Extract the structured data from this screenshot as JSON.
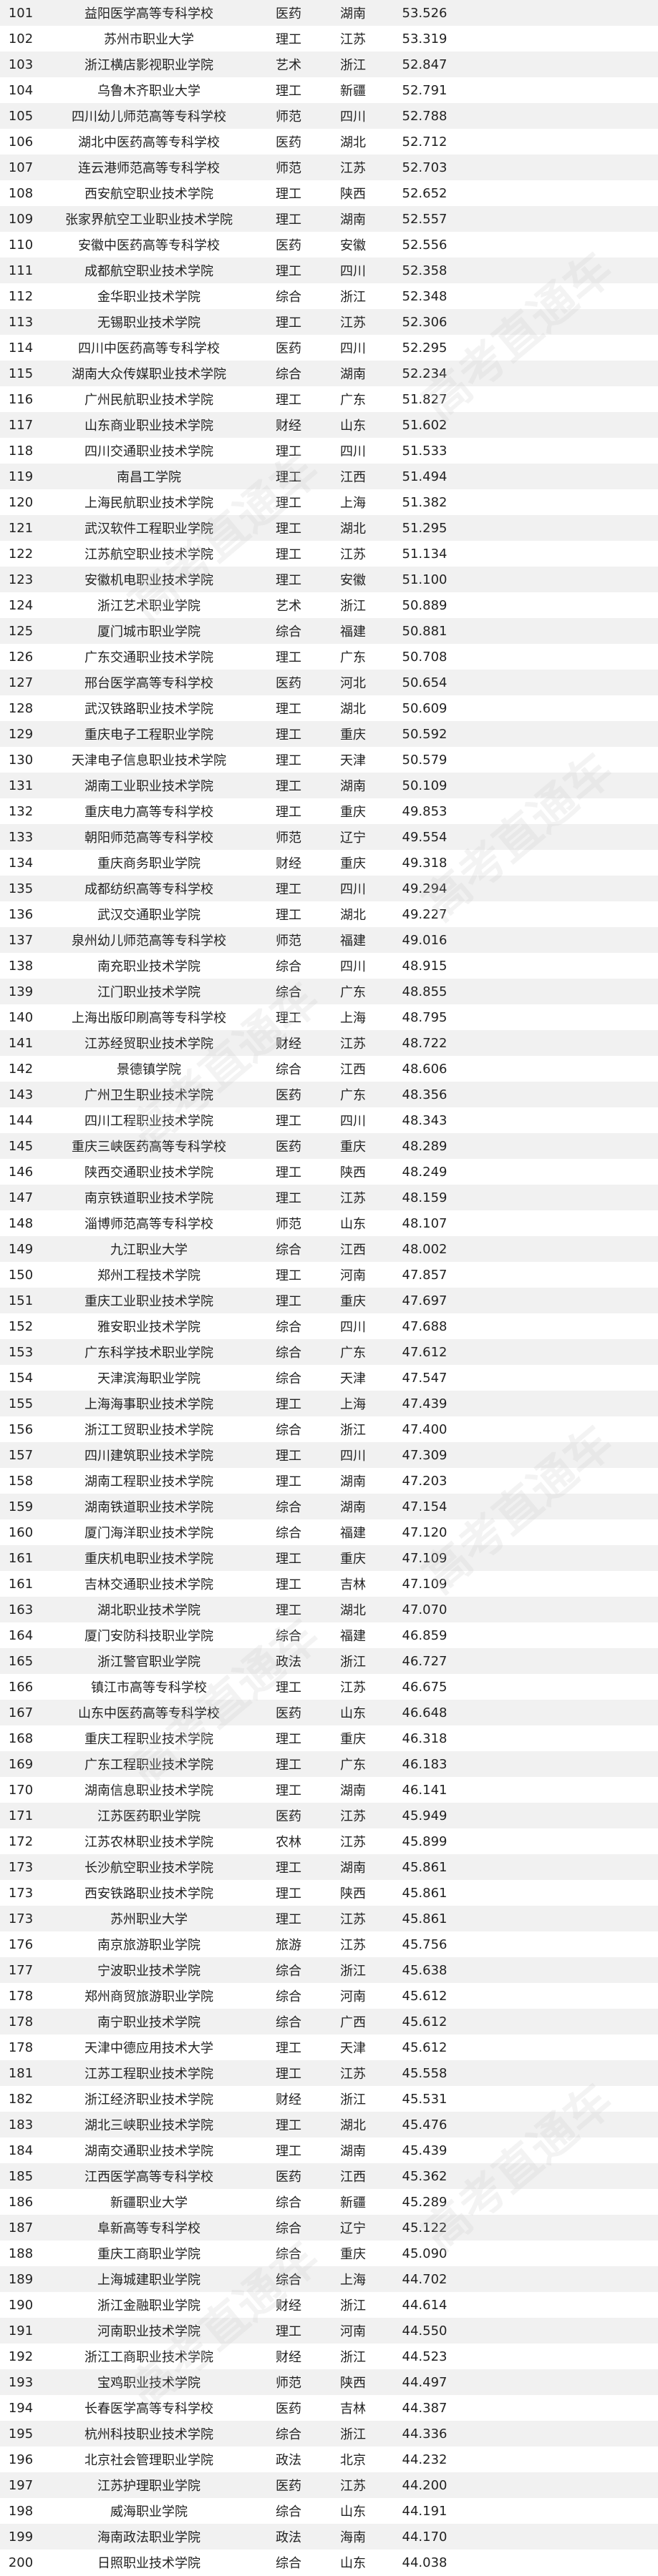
{
  "watermark": "高考直通车",
  "rows": [
    [
      "101",
      "益阳医学高等专科学校",
      "医药",
      "湖南",
      "53.526"
    ],
    [
      "102",
      "苏州市职业大学",
      "理工",
      "江苏",
      "53.319"
    ],
    [
      "103",
      "浙江横店影视职业学院",
      "艺术",
      "浙江",
      "52.847"
    ],
    [
      "104",
      "乌鲁木齐职业大学",
      "理工",
      "新疆",
      "52.791"
    ],
    [
      "105",
      "四川幼儿师范高等专科学校",
      "师范",
      "四川",
      "52.788"
    ],
    [
      "106",
      "湖北中医药高等专科学校",
      "医药",
      "湖北",
      "52.712"
    ],
    [
      "107",
      "连云港师范高等专科学校",
      "师范",
      "江苏",
      "52.703"
    ],
    [
      "108",
      "西安航空职业技术学院",
      "理工",
      "陕西",
      "52.652"
    ],
    [
      "109",
      "张家界航空工业职业技术学院",
      "理工",
      "湖南",
      "52.557"
    ],
    [
      "110",
      "安徽中医药高等专科学校",
      "医药",
      "安徽",
      "52.556"
    ],
    [
      "111",
      "成都航空职业技术学院",
      "理工",
      "四川",
      "52.358"
    ],
    [
      "112",
      "金华职业技术学院",
      "综合",
      "浙江",
      "52.348"
    ],
    [
      "113",
      "无锡职业技术学院",
      "理工",
      "江苏",
      "52.306"
    ],
    [
      "114",
      "四川中医药高等专科学校",
      "医药",
      "四川",
      "52.295"
    ],
    [
      "115",
      "湖南大众传媒职业技术学院",
      "综合",
      "湖南",
      "52.234"
    ],
    [
      "116",
      "广州民航职业技术学院",
      "理工",
      "广东",
      "51.827"
    ],
    [
      "117",
      "山东商业职业技术学院",
      "财经",
      "山东",
      "51.602"
    ],
    [
      "118",
      "四川交通职业技术学院",
      "理工",
      "四川",
      "51.533"
    ],
    [
      "119",
      "南昌工学院",
      "理工",
      "江西",
      "51.494"
    ],
    [
      "120",
      "上海民航职业技术学院",
      "理工",
      "上海",
      "51.382"
    ],
    [
      "121",
      "武汉软件工程职业学院",
      "理工",
      "湖北",
      "51.295"
    ],
    [
      "122",
      "江苏航空职业技术学院",
      "理工",
      "江苏",
      "51.134"
    ],
    [
      "123",
      "安徽机电职业技术学院",
      "理工",
      "安徽",
      "51.100"
    ],
    [
      "124",
      "浙江艺术职业学院",
      "艺术",
      "浙江",
      "50.889"
    ],
    [
      "125",
      "厦门城市职业学院",
      "综合",
      "福建",
      "50.881"
    ],
    [
      "126",
      "广东交通职业技术学院",
      "理工",
      "广东",
      "50.708"
    ],
    [
      "127",
      "邢台医学高等专科学校",
      "医药",
      "河北",
      "50.654"
    ],
    [
      "128",
      "武汉铁路职业技术学院",
      "理工",
      "湖北",
      "50.609"
    ],
    [
      "129",
      "重庆电子工程职业学院",
      "理工",
      "重庆",
      "50.592"
    ],
    [
      "130",
      "天津电子信息职业技术学院",
      "理工",
      "天津",
      "50.579"
    ],
    [
      "131",
      "湖南工业职业技术学院",
      "理工",
      "湖南",
      "50.109"
    ],
    [
      "132",
      "重庆电力高等专科学校",
      "理工",
      "重庆",
      "49.853"
    ],
    [
      "133",
      "朝阳师范高等专科学校",
      "师范",
      "辽宁",
      "49.554"
    ],
    [
      "134",
      "重庆商务职业学院",
      "财经",
      "重庆",
      "49.318"
    ],
    [
      "135",
      "成都纺织高等专科学校",
      "理工",
      "四川",
      "49.294"
    ],
    [
      "136",
      "武汉交通职业学院",
      "理工",
      "湖北",
      "49.227"
    ],
    [
      "137",
      "泉州幼儿师范高等专科学校",
      "师范",
      "福建",
      "49.016"
    ],
    [
      "138",
      "南充职业技术学院",
      "综合",
      "四川",
      "48.915"
    ],
    [
      "139",
      "江门职业技术学院",
      "综合",
      "广东",
      "48.855"
    ],
    [
      "140",
      "上海出版印刷高等专科学校",
      "理工",
      "上海",
      "48.795"
    ],
    [
      "141",
      "江苏经贸职业技术学院",
      "财经",
      "江苏",
      "48.722"
    ],
    [
      "142",
      "景德镇学院",
      "综合",
      "江西",
      "48.606"
    ],
    [
      "143",
      "广州卫生职业技术学院",
      "医药",
      "广东",
      "48.356"
    ],
    [
      "144",
      "四川工程职业技术学院",
      "理工",
      "四川",
      "48.343"
    ],
    [
      "145",
      "重庆三峡医药高等专科学校",
      "医药",
      "重庆",
      "48.289"
    ],
    [
      "146",
      "陕西交通职业技术学院",
      "理工",
      "陕西",
      "48.249"
    ],
    [
      "147",
      "南京铁道职业技术学院",
      "理工",
      "江苏",
      "48.159"
    ],
    [
      "148",
      "淄博师范高等专科学校",
      "师范",
      "山东",
      "48.107"
    ],
    [
      "149",
      "九江职业大学",
      "综合",
      "江西",
      "48.002"
    ],
    [
      "150",
      "郑州工程技术学院",
      "理工",
      "河南",
      "47.857"
    ],
    [
      "151",
      "重庆工业职业技术学院",
      "理工",
      "重庆",
      "47.697"
    ],
    [
      "152",
      "雅安职业技术学院",
      "综合",
      "四川",
      "47.688"
    ],
    [
      "153",
      "广东科学技术职业学院",
      "综合",
      "广东",
      "47.612"
    ],
    [
      "154",
      "天津滨海职业学院",
      "综合",
      "天津",
      "47.547"
    ],
    [
      "155",
      "上海海事职业技术学院",
      "理工",
      "上海",
      "47.439"
    ],
    [
      "156",
      "浙江工贸职业技术学院",
      "综合",
      "浙江",
      "47.400"
    ],
    [
      "157",
      "四川建筑职业技术学院",
      "理工",
      "四川",
      "47.309"
    ],
    [
      "158",
      "湖南工程职业技术学院",
      "理工",
      "湖南",
      "47.203"
    ],
    [
      "159",
      "湖南铁道职业技术学院",
      "综合",
      "湖南",
      "47.154"
    ],
    [
      "160",
      "厦门海洋职业技术学院",
      "综合",
      "福建",
      "47.120"
    ],
    [
      "161",
      "重庆机电职业技术学院",
      "理工",
      "重庆",
      "47.109"
    ],
    [
      "161",
      "吉林交通职业技术学院",
      "理工",
      "吉林",
      "47.109"
    ],
    [
      "163",
      "湖北职业技术学院",
      "理工",
      "湖北",
      "47.070"
    ],
    [
      "164",
      "厦门安防科技职业学院",
      "综合",
      "福建",
      "46.859"
    ],
    [
      "165",
      "浙江警官职业学院",
      "政法",
      "浙江",
      "46.727"
    ],
    [
      "166",
      "镇江市高等专科学校",
      "理工",
      "江苏",
      "46.675"
    ],
    [
      "167",
      "山东中医药高等专科学校",
      "医药",
      "山东",
      "46.648"
    ],
    [
      "168",
      "重庆工程职业技术学院",
      "理工",
      "重庆",
      "46.318"
    ],
    [
      "169",
      "广东工程职业技术学院",
      "理工",
      "广东",
      "46.183"
    ],
    [
      "170",
      "湖南信息职业技术学院",
      "理工",
      "湖南",
      "46.141"
    ],
    [
      "171",
      "江苏医药职业学院",
      "医药",
      "江苏",
      "45.949"
    ],
    [
      "172",
      "江苏农林职业技术学院",
      "农林",
      "江苏",
      "45.899"
    ],
    [
      "173",
      "长沙航空职业技术学院",
      "理工",
      "湖南",
      "45.861"
    ],
    [
      "173",
      "西安铁路职业技术学院",
      "理工",
      "陕西",
      "45.861"
    ],
    [
      "173",
      "苏州职业大学",
      "理工",
      "江苏",
      "45.861"
    ],
    [
      "176",
      "南京旅游职业学院",
      "旅游",
      "江苏",
      "45.756"
    ],
    [
      "177",
      "宁波职业技术学院",
      "综合",
      "浙江",
      "45.638"
    ],
    [
      "178",
      "郑州商贸旅游职业学院",
      "综合",
      "河南",
      "45.612"
    ],
    [
      "178",
      "南宁职业技术学院",
      "综合",
      "广西",
      "45.612"
    ],
    [
      "178",
      "天津中德应用技术大学",
      "理工",
      "天津",
      "45.612"
    ],
    [
      "181",
      "江苏工程职业技术学院",
      "理工",
      "江苏",
      "45.558"
    ],
    [
      "182",
      "浙江经济职业技术学院",
      "财经",
      "浙江",
      "45.531"
    ],
    [
      "183",
      "湖北三峡职业技术学院",
      "理工",
      "湖北",
      "45.476"
    ],
    [
      "184",
      "湖南交通职业技术学院",
      "理工",
      "湖南",
      "45.439"
    ],
    [
      "185",
      "江西医学高等专科学校",
      "医药",
      "江西",
      "45.362"
    ],
    [
      "186",
      "新疆职业大学",
      "综合",
      "新疆",
      "45.289"
    ],
    [
      "187",
      "阜新高等专科学校",
      "综合",
      "辽宁",
      "45.122"
    ],
    [
      "188",
      "重庆工商职业学院",
      "综合",
      "重庆",
      "45.090"
    ],
    [
      "189",
      "上海城建职业学院",
      "综合",
      "上海",
      "44.702"
    ],
    [
      "190",
      "浙江金融职业学院",
      "财经",
      "浙江",
      "44.614"
    ],
    [
      "191",
      "河南职业技术学院",
      "理工",
      "河南",
      "44.550"
    ],
    [
      "192",
      "浙江工商职业技术学院",
      "财经",
      "浙江",
      "44.523"
    ],
    [
      "193",
      "宝鸡职业技术学院",
      "师范",
      "陕西",
      "44.497"
    ],
    [
      "194",
      "长春医学高等专科学校",
      "医药",
      "吉林",
      "44.387"
    ],
    [
      "195",
      "杭州科技职业技术学院",
      "综合",
      "浙江",
      "44.336"
    ],
    [
      "196",
      "北京社会管理职业学院",
      "政法",
      "北京",
      "44.232"
    ],
    [
      "197",
      "江苏护理职业学院",
      "医药",
      "江苏",
      "44.200"
    ],
    [
      "198",
      "威海职业学院",
      "综合",
      "山东",
      "44.191"
    ],
    [
      "199",
      "海南政法职业学院",
      "政法",
      "海南",
      "44.170"
    ],
    [
      "200",
      "日照职业技术学院",
      "综合",
      "山东",
      "44.038"
    ]
  ]
}
